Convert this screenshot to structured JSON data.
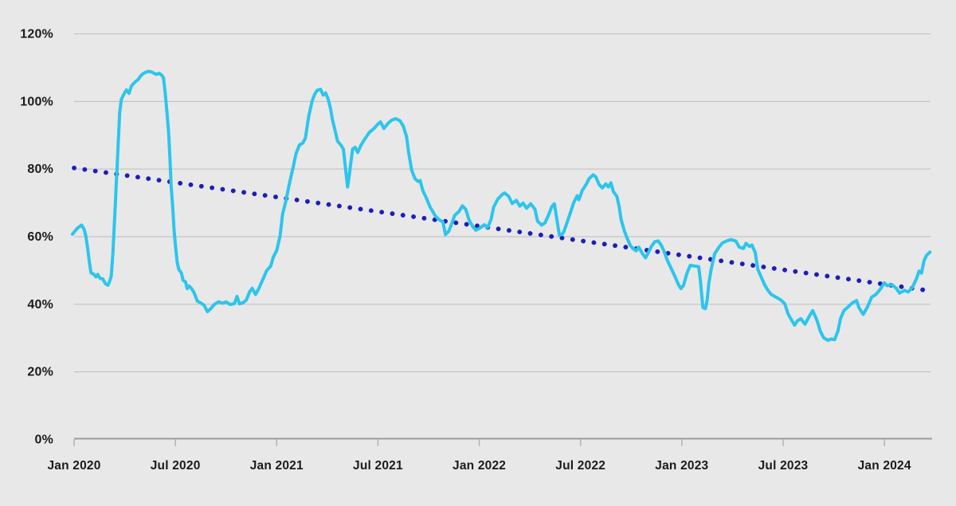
{
  "chart_data": {
    "type": "line",
    "title": "",
    "legend": "none",
    "grid": "horizontal",
    "background_color": "#e8e8e8",
    "gridline_color": "#bdbdbd",
    "axis_line_color": "#9b9b9b",
    "tick_color": "#b3b3b3",
    "label_color": "#1b1b1b",
    "x_axis": {
      "unit": "months_since_jan_2020",
      "ticks": [
        {
          "m": 0,
          "label": "Jan 2020"
        },
        {
          "m": 6,
          "label": "Jul 2020"
        },
        {
          "m": 12,
          "label": "Jan 2021"
        },
        {
          "m": 18,
          "label": "Jul 2021"
        },
        {
          "m": 24,
          "label": "Jan 2022"
        },
        {
          "m": 30,
          "label": "Jul 2022"
        },
        {
          "m": 36,
          "label": "Jan 2023"
        },
        {
          "m": 42,
          "label": "Jul 2023"
        },
        {
          "m": 48,
          "label": "Jan 2024"
        }
      ]
    },
    "y_axis": {
      "unit": "percent",
      "range": [
        0,
        120
      ],
      "ticks": [
        {
          "v": 120,
          "label": "120%"
        },
        {
          "v": 100,
          "label": "100%"
        },
        {
          "v": 80,
          "label": "80%"
        },
        {
          "v": 60,
          "label": "60%"
        },
        {
          "v": 40,
          "label": "40%"
        },
        {
          "v": 20,
          "label": "20%"
        },
        {
          "v": 0,
          "label": "0%"
        }
      ]
    },
    "series": [
      {
        "name": "value-percent",
        "color": "#2cc5ec",
        "stroke_width": 4,
        "points": [
          [
            -0.1,
            60.6
          ],
          [
            0,
            61.2
          ],
          [
            0.2,
            62.4
          ],
          [
            0.45,
            63.3
          ],
          [
            0.6,
            62.0
          ],
          [
            0.7,
            60.0
          ],
          [
            0.8,
            56.5
          ],
          [
            0.9,
            52.5
          ],
          [
            1.0,
            49.2
          ],
          [
            1.15,
            48.8
          ],
          [
            1.3,
            48.0
          ],
          [
            1.4,
            48.7
          ],
          [
            1.55,
            47.5
          ],
          [
            1.7,
            47.4
          ],
          [
            1.85,
            46.0
          ],
          [
            2.0,
            45.5
          ],
          [
            2.1,
            46.6
          ],
          [
            2.2,
            48.1
          ],
          [
            2.3,
            55.0
          ],
          [
            2.38,
            63.0
          ],
          [
            2.45,
            70.0
          ],
          [
            2.5,
            76.0
          ],
          [
            2.55,
            80.5
          ],
          [
            2.62,
            88.0
          ],
          [
            2.7,
            96.5
          ],
          [
            2.8,
            100.5
          ],
          [
            2.95,
            102.0
          ],
          [
            3.1,
            103.3
          ],
          [
            3.25,
            102.3
          ],
          [
            3.4,
            104.5
          ],
          [
            3.6,
            105.6
          ],
          [
            3.8,
            106.4
          ],
          [
            3.95,
            107.5
          ],
          [
            4.15,
            108.3
          ],
          [
            4.4,
            108.8
          ],
          [
            4.6,
            108.6
          ],
          [
            4.85,
            107.9
          ],
          [
            5.05,
            108.2
          ],
          [
            5.2,
            107.6
          ],
          [
            5.3,
            106.8
          ],
          [
            5.4,
            102.3
          ],
          [
            5.5,
            96.9
          ],
          [
            5.6,
            90.5
          ],
          [
            5.68,
            82.7
          ],
          [
            5.75,
            75.0
          ],
          [
            5.85,
            67.9
          ],
          [
            5.92,
            62.2
          ],
          [
            6.0,
            57.5
          ],
          [
            6.1,
            52.5
          ],
          [
            6.2,
            50.2
          ],
          [
            6.35,
            49.2
          ],
          [
            6.45,
            47.0
          ],
          [
            6.6,
            46.5
          ],
          [
            6.7,
            44.5
          ],
          [
            6.8,
            45.3
          ],
          [
            6.95,
            44.6
          ],
          [
            7.1,
            43.4
          ],
          [
            7.3,
            40.8
          ],
          [
            7.5,
            40.3
          ],
          [
            7.7,
            39.6
          ],
          [
            7.9,
            37.7
          ],
          [
            8.1,
            38.6
          ],
          [
            8.3,
            39.8
          ],
          [
            8.55,
            40.6
          ],
          [
            8.8,
            40.2
          ],
          [
            9.0,
            40.6
          ],
          [
            9.25,
            39.8
          ],
          [
            9.5,
            40.1
          ],
          [
            9.65,
            42.2
          ],
          [
            9.8,
            40.0
          ],
          [
            10.0,
            40.3
          ],
          [
            10.2,
            41.1
          ],
          [
            10.4,
            43.6
          ],
          [
            10.55,
            44.6
          ],
          [
            10.75,
            42.8
          ],
          [
            10.95,
            44.6
          ],
          [
            11.2,
            47.4
          ],
          [
            11.4,
            49.8
          ],
          [
            11.65,
            51.2
          ],
          [
            11.8,
            53.8
          ],
          [
            12.0,
            55.8
          ],
          [
            12.2,
            60.0
          ],
          [
            12.35,
            66.5
          ],
          [
            12.55,
            70.5
          ],
          [
            12.75,
            75.5
          ],
          [
            13.0,
            81.0
          ],
          [
            13.15,
            84.5
          ],
          [
            13.35,
            87.0
          ],
          [
            13.55,
            87.6
          ],
          [
            13.7,
            89.0
          ],
          [
            13.9,
            95.5
          ],
          [
            14.1,
            100.0
          ],
          [
            14.25,
            102.0
          ],
          [
            14.4,
            103.2
          ],
          [
            14.6,
            103.5
          ],
          [
            14.75,
            101.8
          ],
          [
            14.9,
            102.4
          ],
          [
            15.05,
            100.6
          ],
          [
            15.2,
            97.5
          ],
          [
            15.3,
            94.6
          ],
          [
            15.45,
            91.5
          ],
          [
            15.6,
            88.2
          ],
          [
            15.8,
            87.0
          ],
          [
            15.95,
            85.8
          ],
          [
            16.1,
            79.0
          ],
          [
            16.2,
            74.6
          ],
          [
            16.3,
            78.0
          ],
          [
            16.4,
            82.0
          ],
          [
            16.5,
            85.8
          ],
          [
            16.65,
            86.3
          ],
          [
            16.8,
            84.8
          ],
          [
            17.0,
            87.0
          ],
          [
            17.25,
            89.0
          ],
          [
            17.5,
            90.8
          ],
          [
            17.75,
            91.8
          ],
          [
            18.0,
            93.2
          ],
          [
            18.15,
            93.8
          ],
          [
            18.35,
            91.9
          ],
          [
            18.6,
            93.4
          ],
          [
            18.8,
            94.3
          ],
          [
            19.05,
            94.8
          ],
          [
            19.3,
            94.2
          ],
          [
            19.5,
            92.6
          ],
          [
            19.7,
            89.4
          ],
          [
            19.82,
            84.7
          ],
          [
            20.0,
            79.5
          ],
          [
            20.2,
            77.0
          ],
          [
            20.38,
            76.2
          ],
          [
            20.5,
            76.5
          ],
          [
            20.65,
            73.6
          ],
          [
            20.85,
            71.5
          ],
          [
            21.1,
            68.5
          ],
          [
            21.4,
            66.0
          ],
          [
            21.6,
            65.0
          ],
          [
            21.85,
            64.2
          ],
          [
            22.0,
            60.5
          ],
          [
            22.2,
            61.5
          ],
          [
            22.35,
            63.5
          ],
          [
            22.55,
            66.2
          ],
          [
            22.8,
            67.3
          ],
          [
            23.0,
            69.0
          ],
          [
            23.2,
            68.0
          ],
          [
            23.4,
            64.8
          ],
          [
            23.6,
            63.0
          ],
          [
            23.8,
            61.8
          ],
          [
            24.0,
            62.3
          ],
          [
            24.3,
            63.4
          ],
          [
            24.5,
            62.6
          ],
          [
            24.7,
            65.0
          ],
          [
            24.85,
            68.6
          ],
          [
            25.1,
            71.0
          ],
          [
            25.35,
            72.3
          ],
          [
            25.5,
            72.8
          ],
          [
            25.75,
            71.8
          ],
          [
            25.95,
            69.7
          ],
          [
            26.2,
            70.6
          ],
          [
            26.4,
            68.9
          ],
          [
            26.6,
            69.8
          ],
          [
            26.8,
            68.3
          ],
          [
            27.05,
            69.6
          ],
          [
            27.3,
            68.0
          ],
          [
            27.45,
            64.5
          ],
          [
            27.7,
            63.3
          ],
          [
            27.9,
            64.0
          ],
          [
            28.1,
            66.2
          ],
          [
            28.3,
            68.8
          ],
          [
            28.45,
            69.6
          ],
          [
            28.6,
            65.0
          ],
          [
            28.75,
            60.3
          ],
          [
            28.9,
            60.6
          ],
          [
            29.0,
            61.2
          ],
          [
            29.2,
            64.0
          ],
          [
            29.4,
            67.0
          ],
          [
            29.6,
            70.0
          ],
          [
            29.8,
            72.0
          ],
          [
            29.9,
            70.8
          ],
          [
            30.1,
            73.5
          ],
          [
            30.35,
            75.5
          ],
          [
            30.5,
            77.0
          ],
          [
            30.75,
            78.2
          ],
          [
            30.9,
            77.6
          ],
          [
            31.1,
            75.3
          ],
          [
            31.3,
            74.3
          ],
          [
            31.5,
            75.5
          ],
          [
            31.65,
            74.6
          ],
          [
            31.8,
            75.8
          ],
          [
            31.95,
            73.2
          ],
          [
            32.15,
            71.8
          ],
          [
            32.3,
            68.5
          ],
          [
            32.4,
            65.0
          ],
          [
            32.6,
            61.5
          ],
          [
            32.75,
            59.5
          ],
          [
            32.95,
            57.3
          ],
          [
            33.1,
            56.4
          ],
          [
            33.3,
            55.7
          ],
          [
            33.45,
            56.8
          ],
          [
            33.65,
            55.0
          ],
          [
            33.85,
            53.6
          ],
          [
            34.0,
            55.0
          ],
          [
            34.2,
            57.0
          ],
          [
            34.4,
            58.4
          ],
          [
            34.6,
            58.6
          ],
          [
            34.8,
            57.2
          ],
          [
            34.95,
            55.5
          ],
          [
            35.15,
            52.8
          ],
          [
            35.4,
            50.2
          ],
          [
            35.6,
            48.0
          ],
          [
            35.8,
            45.7
          ],
          [
            35.95,
            44.5
          ],
          [
            36.1,
            45.5
          ],
          [
            36.3,
            49.0
          ],
          [
            36.5,
            51.4
          ],
          [
            36.75,
            51.2
          ],
          [
            37.0,
            51.0
          ],
          [
            37.1,
            47.0
          ],
          [
            37.25,
            38.9
          ],
          [
            37.4,
            38.6
          ],
          [
            37.5,
            41.0
          ],
          [
            37.6,
            46.0
          ],
          [
            37.75,
            50.5
          ],
          [
            37.95,
            54.9
          ],
          [
            38.2,
            56.8
          ],
          [
            38.4,
            58.0
          ],
          [
            38.65,
            58.6
          ],
          [
            38.9,
            59.0
          ],
          [
            39.2,
            58.6
          ],
          [
            39.4,
            56.8
          ],
          [
            39.65,
            56.4
          ],
          [
            39.8,
            57.9
          ],
          [
            40.0,
            57.0
          ],
          [
            40.15,
            57.4
          ],
          [
            40.35,
            55.2
          ],
          [
            40.5,
            50.2
          ],
          [
            40.7,
            48.0
          ],
          [
            40.9,
            45.7
          ],
          [
            41.1,
            44.0
          ],
          [
            41.3,
            42.8
          ],
          [
            41.5,
            42.2
          ],
          [
            41.75,
            41.5
          ],
          [
            41.9,
            41.0
          ],
          [
            42.1,
            40.0
          ],
          [
            42.3,
            37.0
          ],
          [
            42.5,
            35.2
          ],
          [
            42.68,
            33.7
          ],
          [
            42.85,
            35.0
          ],
          [
            43.05,
            35.6
          ],
          [
            43.3,
            34.0
          ],
          [
            43.55,
            36.3
          ],
          [
            43.75,
            38.0
          ],
          [
            44.0,
            35.2
          ],
          [
            44.2,
            32.0
          ],
          [
            44.4,
            30.0
          ],
          [
            44.65,
            29.2
          ],
          [
            44.85,
            29.6
          ],
          [
            45.05,
            29.4
          ],
          [
            45.25,
            32.0
          ],
          [
            45.4,
            35.6
          ],
          [
            45.6,
            38.0
          ],
          [
            45.85,
            39.1
          ],
          [
            46.1,
            40.3
          ],
          [
            46.35,
            41.0
          ],
          [
            46.5,
            38.8
          ],
          [
            46.75,
            36.9
          ],
          [
            47.0,
            39.1
          ],
          [
            47.25,
            42.0
          ],
          [
            47.5,
            42.8
          ],
          [
            47.75,
            44.3
          ],
          [
            48.0,
            46.2
          ],
          [
            48.15,
            45.4
          ],
          [
            48.45,
            45.7
          ],
          [
            48.7,
            44.6
          ],
          [
            48.9,
            43.2
          ],
          [
            49.2,
            44.0
          ],
          [
            49.4,
            43.5
          ],
          [
            49.65,
            44.8
          ],
          [
            49.9,
            47.4
          ],
          [
            50.05,
            49.7
          ],
          [
            50.2,
            49.1
          ],
          [
            50.35,
            52.8
          ],
          [
            50.5,
            54.4
          ],
          [
            50.7,
            55.3
          ]
        ]
      }
    ],
    "trendline": {
      "name": "linear-trend",
      "color": "#1e1eb8",
      "style": "dotted",
      "dot_radius": 2.9,
      "dot_spacing_px": 13.35,
      "start": [
        0,
        80.2
      ],
      "end": [
        50.5,
        44.0
      ]
    }
  }
}
